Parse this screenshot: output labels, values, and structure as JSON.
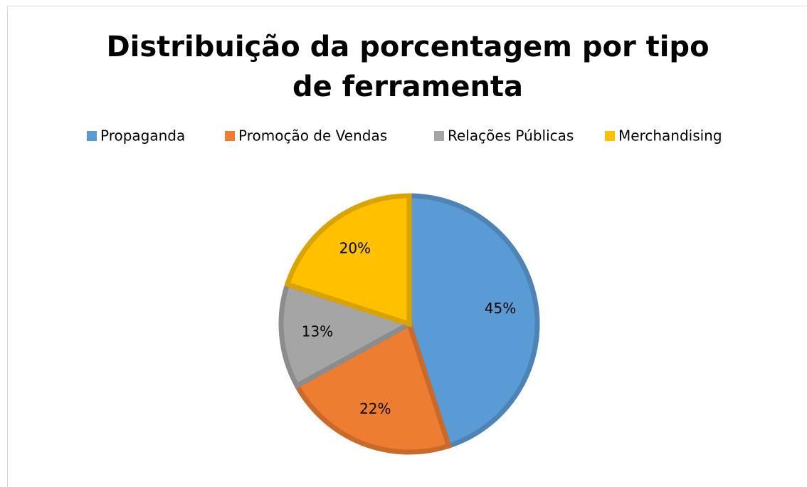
{
  "chart_data": {
    "type": "pie",
    "title": "Distribuição da porcentagem por tipo de ferramenta",
    "categories": [
      "Propaganda",
      "Promoção de Vendas",
      "Relações Públicas",
      "Merchandising"
    ],
    "values": [
      45,
      22,
      13,
      20
    ],
    "value_labels": [
      "45%",
      "22%",
      "13%",
      "20%"
    ],
    "colors": [
      "#5b9bd5",
      "#ed7d31",
      "#a5a5a5",
      "#ffc000"
    ],
    "legend": "top"
  }
}
